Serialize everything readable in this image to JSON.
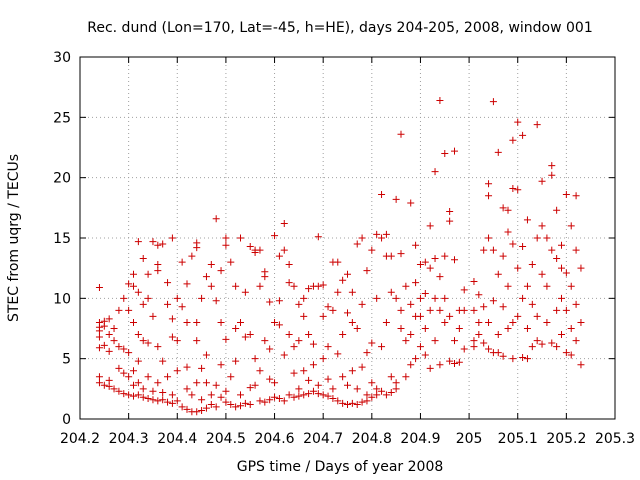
{
  "chart_data": {
    "type": "scatter",
    "title": "Rec. dund (Lon=170, Lat=-45, h=HE), days 204-205, 2008, window 001",
    "xlabel": "GPS time / Days of year 2008",
    "ylabel": "STEC from uqrg / TECUs",
    "xlim": [
      204.2,
      205.3
    ],
    "ylim": [
      0,
      30
    ],
    "xticks": [
      "204.2",
      "204.3",
      "204.4",
      "204.5",
      "204.6",
      "204.7",
      "204.8",
      "204.9",
      "205",
      "205.1",
      "205.2",
      "205.3"
    ],
    "yticks": [
      "0",
      "5",
      "10",
      "15",
      "20",
      "25",
      "30"
    ],
    "grid": true,
    "marker": "+",
    "color": "#cc0000",
    "points": [
      [
        204.24,
        10.9
      ],
      [
        204.24,
        8.0
      ],
      [
        204.24,
        7.6
      ],
      [
        204.24,
        7.3
      ],
      [
        204.24,
        6.8
      ],
      [
        204.24,
        5.9
      ],
      [
        204.24,
        3.5
      ],
      [
        204.24,
        3.0
      ],
      [
        204.25,
        8.1
      ],
      [
        204.25,
        7.7
      ],
      [
        204.25,
        6.1
      ],
      [
        204.25,
        2.8
      ],
      [
        204.26,
        8.3
      ],
      [
        204.26,
        7.0
      ],
      [
        204.26,
        5.6
      ],
      [
        204.26,
        3.2
      ],
      [
        204.26,
        2.7
      ],
      [
        204.27,
        7.5
      ],
      [
        204.27,
        6.5
      ],
      [
        204.27,
        2.5
      ],
      [
        204.28,
        9.0
      ],
      [
        204.28,
        6.0
      ],
      [
        204.28,
        4.2
      ],
      [
        204.28,
        2.3
      ],
      [
        204.29,
        10.0
      ],
      [
        204.29,
        5.8
      ],
      [
        204.29,
        3.8
      ],
      [
        204.29,
        2.1
      ],
      [
        204.3,
        11.2
      ],
      [
        204.3,
        9.0
      ],
      [
        204.3,
        5.5
      ],
      [
        204.3,
        3.5
      ],
      [
        204.3,
        2.0
      ],
      [
        204.31,
        12.0
      ],
      [
        204.31,
        11.0
      ],
      [
        204.31,
        8.0
      ],
      [
        204.31,
        4.0
      ],
      [
        204.31,
        2.8
      ],
      [
        204.31,
        1.9
      ],
      [
        204.32,
        14.7
      ],
      [
        204.32,
        10.5
      ],
      [
        204.32,
        7.0
      ],
      [
        204.32,
        4.8
      ],
      [
        204.32,
        3.0
      ],
      [
        204.32,
        2.0
      ],
      [
        204.33,
        13.3
      ],
      [
        204.33,
        9.5
      ],
      [
        204.33,
        6.5
      ],
      [
        204.33,
        2.5
      ],
      [
        204.33,
        1.8
      ],
      [
        204.34,
        12.0
      ],
      [
        204.34,
        10.0
      ],
      [
        204.34,
        6.3
      ],
      [
        204.34,
        3.5
      ],
      [
        204.34,
        1.7
      ],
      [
        204.35,
        14.7
      ],
      [
        204.35,
        8.5
      ],
      [
        204.35,
        2.3
      ],
      [
        204.35,
        1.6
      ],
      [
        204.36,
        14.4
      ],
      [
        204.36,
        12.8
      ],
      [
        204.36,
        12.3
      ],
      [
        204.36,
        6.0
      ],
      [
        204.36,
        3.0
      ],
      [
        204.36,
        1.5
      ],
      [
        204.37,
        14.5
      ],
      [
        204.37,
        4.8
      ],
      [
        204.37,
        2.2
      ],
      [
        204.37,
        1.6
      ],
      [
        204.38,
        11.3
      ],
      [
        204.38,
        9.5
      ],
      [
        204.38,
        3.5
      ],
      [
        204.38,
        1.4
      ],
      [
        204.39,
        15.0
      ],
      [
        204.39,
        8.3
      ],
      [
        204.39,
        6.8
      ],
      [
        204.39,
        2.0
      ],
      [
        204.39,
        1.3
      ],
      [
        204.4,
        10.0
      ],
      [
        204.4,
        6.5
      ],
      [
        204.4,
        4.0
      ],
      [
        204.4,
        1.5
      ],
      [
        204.41,
        13.0
      ],
      [
        204.41,
        9.3
      ],
      [
        204.41,
        1.0
      ],
      [
        204.42,
        11.2
      ],
      [
        204.42,
        8.0
      ],
      [
        204.42,
        4.3
      ],
      [
        204.42,
        2.5
      ],
      [
        204.42,
        0.8
      ],
      [
        204.43,
        13.5
      ],
      [
        204.43,
        2.0
      ],
      [
        204.43,
        0.6
      ],
      [
        204.44,
        14.6
      ],
      [
        204.44,
        14.2
      ],
      [
        204.44,
        8.0
      ],
      [
        204.44,
        6.5
      ],
      [
        204.44,
        3.0
      ],
      [
        204.44,
        0.6
      ],
      [
        204.45,
        10.0
      ],
      [
        204.45,
        4.2
      ],
      [
        204.45,
        1.6
      ],
      [
        204.45,
        0.7
      ],
      [
        204.46,
        11.8
      ],
      [
        204.46,
        5.3
      ],
      [
        204.46,
        3.0
      ],
      [
        204.46,
        0.9
      ],
      [
        204.47,
        12.8
      ],
      [
        204.47,
        11.0
      ],
      [
        204.47,
        2.0
      ],
      [
        204.47,
        1.2
      ],
      [
        204.48,
        16.6
      ],
      [
        204.48,
        9.8
      ],
      [
        204.48,
        2.8
      ],
      [
        204.48,
        1.0
      ],
      [
        204.49,
        12.3
      ],
      [
        204.49,
        8.0
      ],
      [
        204.49,
        4.5
      ],
      [
        204.49,
        1.8
      ],
      [
        204.5,
        15.0
      ],
      [
        204.5,
        14.4
      ],
      [
        204.5,
        6.6
      ],
      [
        204.5,
        2.3
      ],
      [
        204.5,
        1.4
      ],
      [
        204.51,
        13.0
      ],
      [
        204.51,
        3.5
      ],
      [
        204.51,
        1.2
      ],
      [
        204.52,
        11.0
      ],
      [
        204.52,
        7.5
      ],
      [
        204.52,
        4.8
      ],
      [
        204.52,
        1.0
      ],
      [
        204.53,
        15.0
      ],
      [
        204.53,
        8.0
      ],
      [
        204.53,
        2.0
      ],
      [
        204.53,
        1.1
      ],
      [
        204.54,
        10.5
      ],
      [
        204.54,
        6.8
      ],
      [
        204.54,
        1.3
      ],
      [
        204.55,
        14.3
      ],
      [
        204.55,
        7.0
      ],
      [
        204.55,
        2.6
      ],
      [
        204.55,
        1.2
      ],
      [
        204.56,
        14.0
      ],
      [
        204.56,
        13.8
      ],
      [
        204.56,
        5.0
      ],
      [
        204.56,
        2.8
      ],
      [
        204.57,
        14.0
      ],
      [
        204.57,
        11.0
      ],
      [
        204.57,
        4.0
      ],
      [
        204.57,
        1.5
      ],
      [
        204.58,
        12.2
      ],
      [
        204.58,
        11.8
      ],
      [
        204.58,
        6.5
      ],
      [
        204.58,
        1.4
      ],
      [
        204.59,
        9.7
      ],
      [
        204.59,
        5.8
      ],
      [
        204.59,
        3.3
      ],
      [
        204.59,
        1.6
      ],
      [
        204.6,
        15.2
      ],
      [
        204.6,
        8.0
      ],
      [
        204.6,
        3.0
      ],
      [
        204.6,
        1.8
      ],
      [
        204.61,
        13.5
      ],
      [
        204.61,
        9.8
      ],
      [
        204.61,
        7.8
      ],
      [
        204.61,
        1.7
      ],
      [
        204.62,
        16.2
      ],
      [
        204.62,
        14.0
      ],
      [
        204.62,
        5.3
      ],
      [
        204.62,
        1.5
      ],
      [
        204.63,
        12.8
      ],
      [
        204.63,
        11.3
      ],
      [
        204.63,
        7.0
      ],
      [
        204.63,
        2.0
      ],
      [
        204.64,
        11.0
      ],
      [
        204.64,
        6.0
      ],
      [
        204.64,
        3.8
      ],
      [
        204.64,
        1.8
      ],
      [
        204.65,
        9.5
      ],
      [
        204.65,
        6.5
      ],
      [
        204.65,
        2.5
      ],
      [
        204.65,
        1.9
      ],
      [
        204.66,
        10.0
      ],
      [
        204.66,
        8.5
      ],
      [
        204.66,
        4.0
      ],
      [
        204.66,
        2.0
      ],
      [
        204.67,
        10.8
      ],
      [
        204.67,
        7.0
      ],
      [
        204.67,
        3.2
      ],
      [
        204.67,
        2.1
      ],
      [
        204.68,
        11.0
      ],
      [
        204.68,
        6.2
      ],
      [
        204.68,
        4.5
      ],
      [
        204.68,
        2.3
      ],
      [
        204.69,
        15.1
      ],
      [
        204.69,
        11.0
      ],
      [
        204.69,
        2.8
      ],
      [
        204.69,
        2.1
      ],
      [
        204.7,
        11.1
      ],
      [
        204.7,
        8.5
      ],
      [
        204.7,
        5.0
      ],
      [
        204.7,
        2.0
      ],
      [
        204.71,
        9.3
      ],
      [
        204.71,
        6.0
      ],
      [
        204.71,
        3.3
      ],
      [
        204.71,
        1.9
      ],
      [
        204.72,
        13.0
      ],
      [
        204.72,
        9.0
      ],
      [
        204.72,
        2.5
      ],
      [
        204.72,
        1.7
      ],
      [
        204.73,
        13.0
      ],
      [
        204.73,
        10.5
      ],
      [
        204.73,
        5.4
      ],
      [
        204.73,
        1.5
      ],
      [
        204.74,
        11.5
      ],
      [
        204.74,
        7.0
      ],
      [
        204.74,
        3.5
      ],
      [
        204.74,
        1.3
      ],
      [
        204.75,
        12.0
      ],
      [
        204.75,
        8.8
      ],
      [
        204.75,
        2.8
      ],
      [
        204.75,
        1.2
      ],
      [
        204.76,
        10.5
      ],
      [
        204.76,
        8.0
      ],
      [
        204.76,
        4.0
      ],
      [
        204.76,
        1.3
      ],
      [
        204.77,
        14.5
      ],
      [
        204.77,
        7.5
      ],
      [
        204.77,
        2.5
      ],
      [
        204.77,
        1.2
      ],
      [
        204.78,
        15.0
      ],
      [
        204.78,
        9.5
      ],
      [
        204.78,
        4.3
      ],
      [
        204.78,
        1.4
      ],
      [
        204.79,
        12.3
      ],
      [
        204.79,
        5.5
      ],
      [
        204.79,
        2.0
      ],
      [
        204.79,
        1.5
      ],
      [
        204.8,
        14.0
      ],
      [
        204.8,
        6.3
      ],
      [
        204.8,
        3.0
      ],
      [
        204.8,
        1.8
      ],
      [
        204.81,
        15.3
      ],
      [
        204.81,
        10.0
      ],
      [
        204.81,
        2.5
      ],
      [
        204.81,
        2.0
      ],
      [
        204.82,
        18.6
      ],
      [
        204.82,
        15.0
      ],
      [
        204.82,
        6.0
      ],
      [
        204.82,
        2.3
      ],
      [
        204.83,
        15.3
      ],
      [
        204.83,
        13.5
      ],
      [
        204.83,
        8.0
      ],
      [
        204.83,
        2.0
      ],
      [
        204.84,
        13.5
      ],
      [
        204.84,
        10.5
      ],
      [
        204.84,
        3.5
      ],
      [
        204.84,
        2.2
      ],
      [
        204.85,
        18.2
      ],
      [
        204.85,
        10.0
      ],
      [
        204.85,
        3.0
      ],
      [
        204.85,
        2.5
      ],
      [
        204.86,
        23.6
      ],
      [
        204.86,
        13.7
      ],
      [
        204.86,
        9.0
      ],
      [
        204.86,
        7.5
      ],
      [
        204.87,
        11.0
      ],
      [
        204.87,
        6.5
      ],
      [
        204.87,
        3.5
      ],
      [
        204.88,
        17.9
      ],
      [
        204.88,
        9.5
      ],
      [
        204.88,
        7.0
      ],
      [
        204.88,
        4.5
      ],
      [
        204.89,
        14.4
      ],
      [
        204.89,
        11.3
      ],
      [
        204.89,
        8.5
      ],
      [
        204.89,
        5.0
      ],
      [
        204.9,
        12.8
      ],
      [
        204.9,
        10.0
      ],
      [
        204.9,
        8.5
      ],
      [
        204.9,
        6.0
      ],
      [
        204.91,
        13.0
      ],
      [
        204.91,
        10.4
      ],
      [
        204.91,
        7.5
      ],
      [
        204.91,
        5.3
      ],
      [
        204.92,
        16.0
      ],
      [
        204.92,
        12.5
      ],
      [
        204.92,
        9.0
      ],
      [
        204.92,
        4.2
      ],
      [
        204.93,
        20.5
      ],
      [
        204.93,
        13.3
      ],
      [
        204.93,
        10.0
      ],
      [
        204.93,
        6.5
      ],
      [
        204.94,
        26.4
      ],
      [
        204.94,
        11.8
      ],
      [
        204.94,
        9.0
      ],
      [
        204.94,
        4.5
      ],
      [
        204.95,
        22.0
      ],
      [
        204.95,
        13.5
      ],
      [
        204.95,
        10.0
      ],
      [
        204.95,
        8.0
      ],
      [
        204.96,
        17.2
      ],
      [
        204.96,
        16.4
      ],
      [
        204.96,
        8.5
      ],
      [
        204.96,
        4.8
      ],
      [
        204.97,
        22.2
      ],
      [
        204.97,
        13.2
      ],
      [
        204.97,
        6.5
      ],
      [
        204.97,
        4.6
      ],
      [
        204.98,
        9.0
      ],
      [
        204.98,
        7.5
      ],
      [
        204.98,
        4.7
      ],
      [
        204.99,
        10.7
      ],
      [
        204.99,
        9.0
      ],
      [
        204.99,
        5.8
      ],
      [
        205.01,
        11.4
      ],
      [
        205.01,
        9.0
      ],
      [
        205.01,
        6.5
      ],
      [
        205.01,
        6.0
      ],
      [
        205.02,
        10.3
      ],
      [
        205.02,
        8.0
      ],
      [
        205.02,
        7.0
      ],
      [
        205.03,
        14.0
      ],
      [
        205.03,
        9.3
      ],
      [
        205.03,
        6.3
      ],
      [
        205.04,
        19.5
      ],
      [
        205.04,
        18.5
      ],
      [
        205.04,
        15.0
      ],
      [
        205.04,
        8.0
      ],
      [
        205.04,
        5.8
      ],
      [
        205.05,
        26.3
      ],
      [
        205.05,
        14.0
      ],
      [
        205.05,
        9.8
      ],
      [
        205.05,
        5.5
      ],
      [
        205.06,
        22.1
      ],
      [
        205.06,
        12.0
      ],
      [
        205.06,
        7.0
      ],
      [
        205.06,
        5.5
      ],
      [
        205.07,
        17.5
      ],
      [
        205.07,
        13.5
      ],
      [
        205.07,
        9.3
      ],
      [
        205.07,
        5.2
      ],
      [
        205.08,
        17.3
      ],
      [
        205.08,
        15.5
      ],
      [
        205.08,
        11.0
      ],
      [
        205.08,
        7.5
      ],
      [
        205.09,
        23.1
      ],
      [
        205.09,
        19.1
      ],
      [
        205.09,
        14.5
      ],
      [
        205.09,
        8.0
      ],
      [
        205.09,
        5.0
      ],
      [
        205.1,
        24.6
      ],
      [
        205.1,
        19.0
      ],
      [
        205.1,
        12.5
      ],
      [
        205.1,
        8.5
      ],
      [
        205.11,
        23.5
      ],
      [
        205.11,
        14.3
      ],
      [
        205.11,
        10.0
      ],
      [
        205.11,
        5.1
      ],
      [
        205.12,
        16.5
      ],
      [
        205.12,
        11.0
      ],
      [
        205.12,
        7.5
      ],
      [
        205.12,
        5.0
      ],
      [
        205.13,
        12.8
      ],
      [
        205.13,
        9.5
      ],
      [
        205.13,
        6.0
      ],
      [
        205.14,
        24.4
      ],
      [
        205.14,
        15.0
      ],
      [
        205.14,
        8.5
      ],
      [
        205.14,
        6.5
      ],
      [
        205.15,
        19.7
      ],
      [
        205.15,
        16.0
      ],
      [
        205.15,
        12.0
      ],
      [
        205.15,
        6.2
      ],
      [
        205.16,
        15.0
      ],
      [
        205.16,
        11.0
      ],
      [
        205.16,
        8.0
      ],
      [
        205.17,
        21.0
      ],
      [
        205.17,
        20.2
      ],
      [
        205.17,
        14.0
      ],
      [
        205.17,
        6.3
      ],
      [
        205.18,
        17.3
      ],
      [
        205.18,
        13.3
      ],
      [
        205.18,
        9.0
      ],
      [
        205.18,
        6.0
      ],
      [
        205.19,
        14.4
      ],
      [
        205.19,
        12.5
      ],
      [
        205.19,
        10.0
      ],
      [
        205.19,
        7.0
      ],
      [
        205.2,
        18.6
      ],
      [
        205.2,
        12.1
      ],
      [
        205.2,
        9.0
      ],
      [
        205.2,
        5.5
      ],
      [
        205.21,
        16.0
      ],
      [
        205.21,
        11.0
      ],
      [
        205.21,
        7.5
      ],
      [
        205.21,
        5.3
      ],
      [
        205.22,
        18.5
      ],
      [
        205.22,
        14.0
      ],
      [
        205.22,
        9.5
      ],
      [
        205.22,
        6.5
      ],
      [
        205.23,
        12.5
      ],
      [
        205.23,
        8.0
      ],
      [
        205.23,
        4.5
      ]
    ]
  }
}
